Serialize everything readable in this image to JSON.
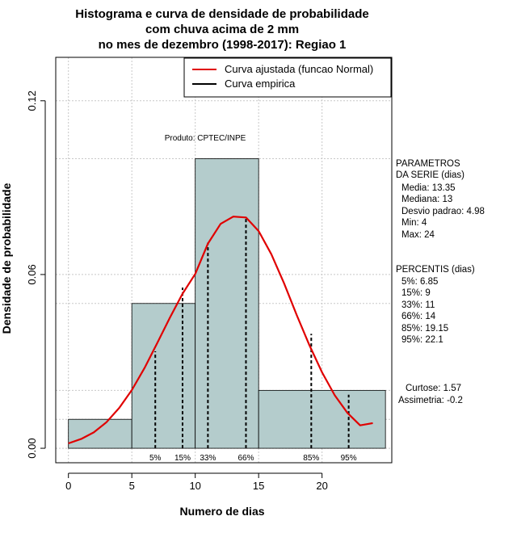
{
  "chart_data": {
    "type": "histogram",
    "title_lines": [
      "Histograma e curva de densidade de probabilidade",
      "com chuva acima de 2 mm",
      "no mes de dezembro (1998-2017): Regiao 1"
    ],
    "xlabel": "Numero de dias",
    "ylabel": "Densidade de probabilidade",
    "xlim": [
      -1,
      25.5
    ],
    "ylim": [
      -0.005,
      0.135
    ],
    "x_ticks": [
      0,
      5,
      10,
      15,
      20
    ],
    "y_ticks": [
      0.0,
      0.06,
      0.12
    ],
    "y_tick_labels": [
      "0.00",
      "0.06",
      "0.12"
    ],
    "grid": true,
    "bins": [
      {
        "start": 0,
        "end": 5,
        "density": 0.01
      },
      {
        "start": 5,
        "end": 10,
        "density": 0.05
      },
      {
        "start": 10,
        "end": 15,
        "density": 0.1
      },
      {
        "start": 15,
        "end": 25,
        "density": 0.02
      }
    ],
    "series": [
      {
        "name": "Curva ajustada (funcao Normal)",
        "color": "#e00000",
        "x": [
          0,
          1,
          2,
          3,
          4,
          5,
          6,
          7,
          8,
          9,
          10,
          11,
          12,
          13,
          14,
          15,
          16,
          17,
          18,
          19,
          20,
          21,
          22,
          23,
          24
        ],
        "y": [
          0.0017,
          0.0032,
          0.0055,
          0.009,
          0.0139,
          0.0201,
          0.0277,
          0.0363,
          0.0451,
          0.0534,
          0.0602,
          0.0707,
          0.0775,
          0.08,
          0.0797,
          0.075,
          0.067,
          0.057,
          0.046,
          0.0356,
          0.0262,
          0.0183,
          0.0122,
          0.0079,
          0.0087
        ]
      },
      {
        "name": "Curva empirica",
        "color": "#000000",
        "x": [],
        "y": []
      }
    ],
    "percentile_lines": [
      {
        "label": "5%",
        "x": 6.85,
        "y": 0.0335
      },
      {
        "label": "15%",
        "x": 9,
        "y": 0.0555
      },
      {
        "label": "33%",
        "x": 11,
        "y": 0.071
      },
      {
        "label": "66%",
        "x": 14,
        "y": 0.0797
      },
      {
        "label": "85%",
        "x": 19.15,
        "y": 0.0395
      },
      {
        "label": "95%",
        "x": 22.1,
        "y": 0.0185
      }
    ],
    "annotation": "Produto: CPTEC/INPE",
    "bar_color": "#b4cccc"
  },
  "side_panel": {
    "params_header_1": "PARAMETROS",
    "params_header_2": "DA SERIE (dias)",
    "params": [
      "Media: 13.35",
      "Mediana: 13",
      "Desvio padrao: 4.98",
      "Min: 4",
      "Max: 24"
    ],
    "percentis_header": "PERCENTIS (dias)",
    "percentis": [
      "5%: 6.85",
      "15%: 9",
      "33%: 11",
      "66%: 14",
      "85%: 19.15",
      "95%: 22.1"
    ],
    "curtose": "Curtose: 1.57",
    "assimetria": "Assimetria: -0.2"
  }
}
